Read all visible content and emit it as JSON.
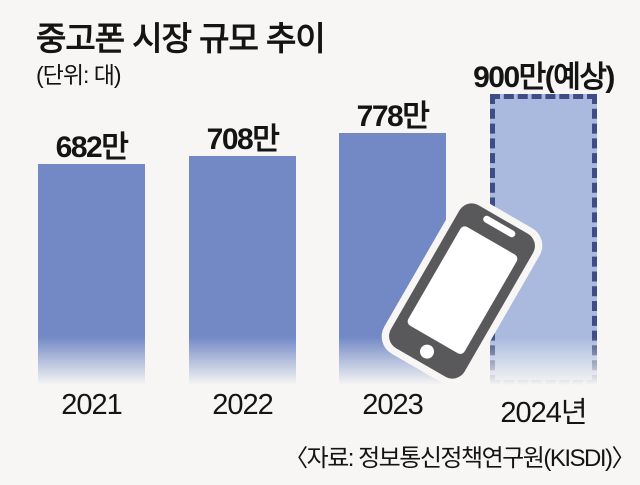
{
  "title": "중고폰 시장 규모 추이",
  "unit_label": "(단위: 대)",
  "source": "〈자료: 정보통신정책연구원(KISDI)〉",
  "colors": {
    "background": "#f7f6f4",
    "bar": "#7289c6",
    "forecast_fill": "#a9bade",
    "forecast_border": "#3d4e86",
    "phone_body": "#59595b",
    "phone_screen": "#ffffff",
    "text": "#141414"
  },
  "chart_data": {
    "type": "bar",
    "title": "중고폰 시장 규모 추이",
    "unit": "만 대",
    "categories": [
      "2021",
      "2022",
      "2023",
      "2024년"
    ],
    "values": [
      682,
      708,
      778,
      900
    ],
    "bar_labels": [
      "682만",
      "708만",
      "778만",
      "900만(예상)"
    ],
    "forecast_index": 3,
    "ylim": [
      0,
      900
    ],
    "xlabel": "",
    "ylabel": "",
    "grid": false,
    "legend": false,
    "annotations": [
      "900만(예상)"
    ]
  },
  "icons": {
    "phone": "smartphone"
  }
}
